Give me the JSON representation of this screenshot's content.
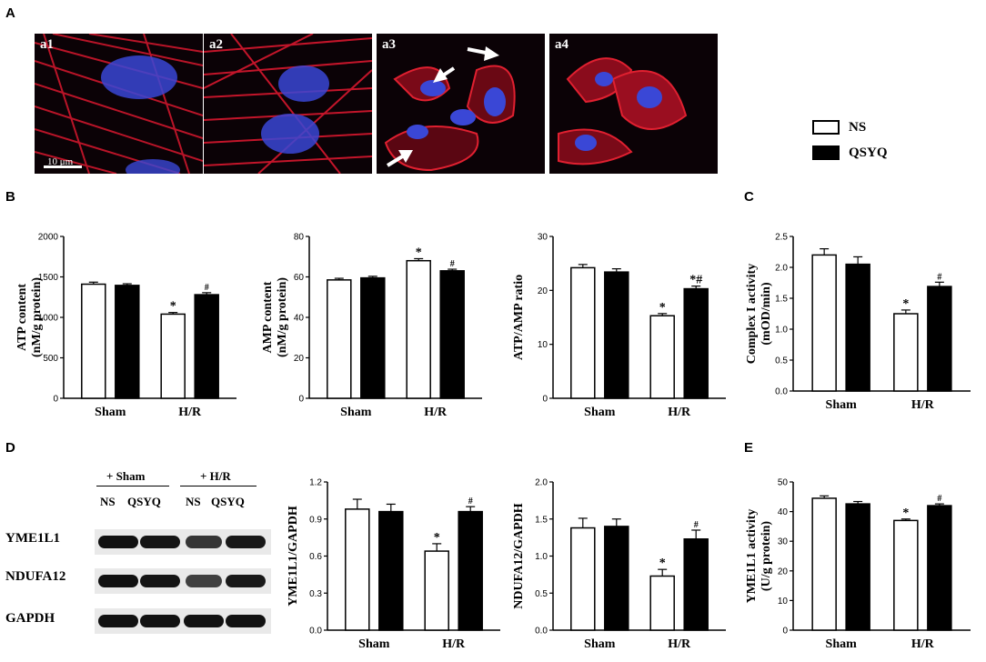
{
  "panel_labels": {
    "A": "A",
    "B": "B",
    "C": "C",
    "D": "D",
    "E": "E"
  },
  "micrographs": [
    {
      "label": "a1",
      "scale": "10 μm"
    },
    {
      "label": "a2"
    },
    {
      "label": "a3"
    },
    {
      "label": "a4"
    }
  ],
  "legend": {
    "ns": "NS",
    "qsyq": "QSYQ"
  },
  "colors": {
    "ns": "#ffffff",
    "qsyq": "#000000",
    "actin": "#d8182e",
    "nuclei": "#3a47d6"
  },
  "blot": {
    "groups": [
      "+ Sham",
      "+ H/R"
    ],
    "lanes": [
      "NS",
      "QSYQ",
      "NS",
      "QSYQ"
    ],
    "rows": [
      "YME1L1",
      "NDUFA12",
      "GAPDH"
    ],
    "band_intensity": {
      "YME1L1": [
        1.0,
        0.97,
        0.7,
        0.95
      ],
      "NDUFA12": [
        1.0,
        0.97,
        0.6,
        0.95
      ],
      "GAPDH": [
        1.0,
        1.0,
        1.0,
        1.0
      ]
    }
  },
  "chart_data": [
    {
      "id": "atp",
      "type": "bar",
      "categories": [
        "Sham",
        "H/R"
      ],
      "ylabel": "ATP content (nM/g protein)",
      "ylim": [
        0,
        2000
      ],
      "yticks": [
        "0",
        "500",
        "1000",
        "1500",
        "2000"
      ],
      "series": [
        {
          "name": "NS",
          "values": [
            1410,
            1040
          ],
          "errors": [
            25,
            20
          ]
        },
        {
          "name": "QSYQ",
          "values": [
            1395,
            1280
          ],
          "errors": [
            20,
            25
          ]
        }
      ],
      "annotations": {
        "NS": [
          "",
          "*"
        ],
        "QSYQ": [
          "",
          "#"
        ]
      }
    },
    {
      "id": "amp",
      "type": "bar",
      "categories": [
        "Sham",
        "H/R"
      ],
      "ylabel": "AMP content (nM/g protein)",
      "ylim": [
        0,
        80
      ],
      "yticks": [
        "0",
        "20",
        "40",
        "60",
        "80"
      ],
      "series": [
        {
          "name": "NS",
          "values": [
            58.5,
            68
          ],
          "errors": [
            0.8,
            1
          ]
        },
        {
          "name": "QSYQ",
          "values": [
            59.5,
            63
          ],
          "errors": [
            0.8,
            0.8
          ]
        }
      ],
      "annotations": {
        "NS": [
          "",
          "*"
        ],
        "QSYQ": [
          "",
          "#"
        ]
      }
    },
    {
      "id": "ratio",
      "type": "bar",
      "categories": [
        "Sham",
        "H/R"
      ],
      "ylabel": "ATP/AMP ratio",
      "ylim": [
        0,
        30
      ],
      "yticks": [
        "0",
        "10",
        "20",
        "30"
      ],
      "series": [
        {
          "name": "NS",
          "values": [
            24.2,
            15.3
          ],
          "errors": [
            0.6,
            0.4
          ]
        },
        {
          "name": "QSYQ",
          "values": [
            23.4,
            20.3
          ],
          "errors": [
            0.6,
            0.5
          ]
        }
      ],
      "annotations": {
        "NS": [
          "",
          "*"
        ],
        "QSYQ": [
          "",
          "*#"
        ]
      }
    },
    {
      "id": "complex1",
      "type": "bar",
      "categories": [
        "Sham",
        "H/R"
      ],
      "ylabel": "Complex I activity (mOD/min)",
      "ylim": [
        0,
        2.5
      ],
      "yticks": [
        "0.0",
        "0.5",
        "1.0",
        "1.5",
        "2.0",
        "2.5"
      ],
      "series": [
        {
          "name": "NS",
          "values": [
            2.2,
            1.25
          ],
          "errors": [
            0.1,
            0.06
          ]
        },
        {
          "name": "QSYQ",
          "values": [
            2.05,
            1.69
          ],
          "errors": [
            0.12,
            0.07
          ]
        }
      ],
      "annotations": {
        "NS": [
          "",
          "*"
        ],
        "QSYQ": [
          "",
          "#"
        ]
      }
    },
    {
      "id": "yme_gapdh",
      "type": "bar",
      "categories": [
        "Sham",
        "H/R"
      ],
      "ylabel": "YME1L1/GAPDH",
      "ylim": [
        0,
        1.2
      ],
      "yticks": [
        "0.0",
        "0.3",
        "0.6",
        "0.9",
        "1.2"
      ],
      "series": [
        {
          "name": "NS",
          "values": [
            0.98,
            0.64
          ],
          "errors": [
            0.08,
            0.06
          ]
        },
        {
          "name": "QSYQ",
          "values": [
            0.96,
            0.96
          ],
          "errors": [
            0.06,
            0.04
          ]
        }
      ],
      "annotations": {
        "NS": [
          "",
          "*"
        ],
        "QSYQ": [
          "",
          "#"
        ]
      }
    },
    {
      "id": "ndufa_gapdh",
      "type": "bar",
      "categories": [
        "Sham",
        "H/R"
      ],
      "ylabel": "NDUFA12/GAPDH",
      "ylim": [
        0,
        2.0
      ],
      "yticks": [
        "0.0",
        "0.5",
        "1.0",
        "1.5",
        "2.0"
      ],
      "series": [
        {
          "name": "NS",
          "values": [
            1.38,
            0.73
          ],
          "errors": [
            0.13,
            0.09
          ]
        },
        {
          "name": "QSYQ",
          "values": [
            1.4,
            1.23
          ],
          "errors": [
            0.1,
            0.12
          ]
        }
      ],
      "annotations": {
        "NS": [
          "",
          "*"
        ],
        "QSYQ": [
          "",
          "#"
        ]
      }
    },
    {
      "id": "yme_activity",
      "type": "bar",
      "categories": [
        "Sham",
        "H/R"
      ],
      "ylabel": "YME1L1 activity (U/g protein)",
      "ylim": [
        0,
        50
      ],
      "yticks": [
        "0",
        "10",
        "20",
        "30",
        "40",
        "50"
      ],
      "series": [
        {
          "name": "NS",
          "values": [
            44.5,
            37
          ],
          "errors": [
            0.8,
            0.5
          ]
        },
        {
          "name": "QSYQ",
          "values": [
            42.6,
            42
          ],
          "errors": [
            0.8,
            0.6
          ]
        }
      ],
      "annotations": {
        "NS": [
          "",
          "*"
        ],
        "QSYQ": [
          "",
          "#"
        ]
      }
    }
  ]
}
